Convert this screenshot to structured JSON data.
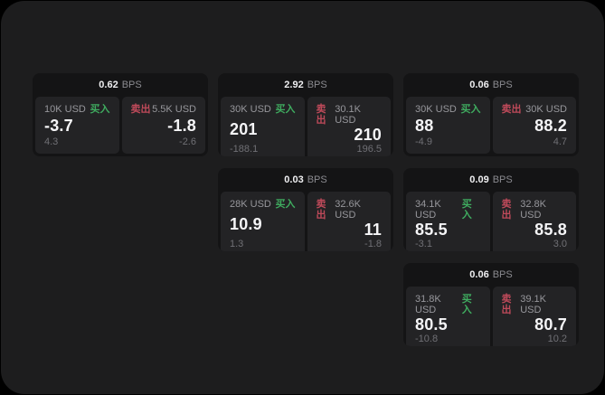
{
  "labels": {
    "bps": "BPS",
    "buy": "买入",
    "sell": "卖出"
  },
  "colors": {
    "background": "#000000",
    "window": "#1d1d1e",
    "card": "#141415",
    "panel": "#232325",
    "buy_green": "#3fab5f",
    "sell_red": "#bf4a5a",
    "primary_text": "#f5f5f7",
    "muted_text": "#97979c"
  },
  "cards": [
    {
      "bps": "0.62",
      "buy": {
        "amount": "10K USD",
        "price": "-3.7",
        "delta": "4.3"
      },
      "sell": {
        "amount": "5.5K USD",
        "price": "-1.8",
        "delta": "-2.6"
      }
    },
    {
      "bps": "2.92",
      "buy": {
        "amount": "30K USD",
        "price": "201",
        "delta": "-188.1"
      },
      "sell": {
        "amount": "30.1K USD",
        "price": "210",
        "delta": "196.5"
      }
    },
    {
      "bps": "0.06",
      "buy": {
        "amount": "30K USD",
        "price": "88",
        "delta": "-4.9"
      },
      "sell": {
        "amount": "30K USD",
        "price": "88.2",
        "delta": "4.7"
      }
    },
    {
      "bps": "0.03",
      "buy": {
        "amount": "28K USD",
        "price": "10.9",
        "delta": "1.3"
      },
      "sell": {
        "amount": "32.6K USD",
        "price": "11",
        "delta": "-1.8"
      }
    },
    {
      "bps": "0.09",
      "buy": {
        "amount": "34.1K USD",
        "price": "85.5",
        "delta": "-3.1"
      },
      "sell": {
        "amount": "32.8K USD",
        "price": "85.8",
        "delta": "3.0"
      }
    },
    {
      "bps": "0.06",
      "buy": {
        "amount": "31.8K USD",
        "price": "80.5",
        "delta": "-10.8"
      },
      "sell": {
        "amount": "39.1K USD",
        "price": "80.7",
        "delta": "10.2"
      }
    }
  ]
}
